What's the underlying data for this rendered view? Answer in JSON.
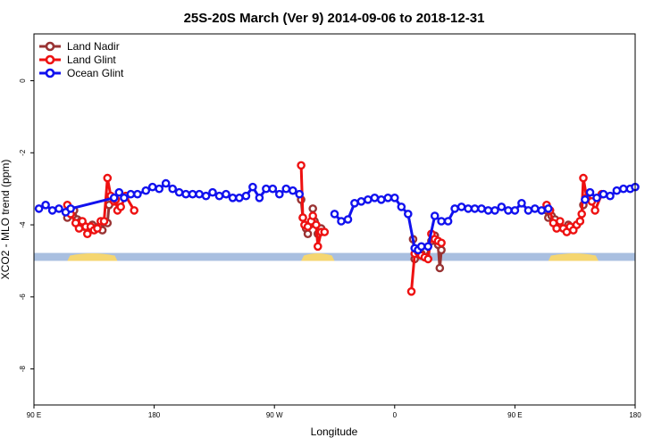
{
  "chart_data": {
    "type": "line",
    "title": "25S-20S March (Ver 9)   2014-09-06 to 2018-12-31",
    "xlabel": "Longitude",
    "ylabel": "XCO2 - MLO trend (ppm)",
    "xlim": [
      0,
      360
    ],
    "ylim": [
      -9,
      1.3
    ],
    "x_ticks": [
      {
        "value": 0,
        "label": "90 E"
      },
      {
        "value": 72,
        "label": "180"
      },
      {
        "value": 144,
        "label": "90 W"
      },
      {
        "value": 216,
        "label": "0"
      },
      {
        "value": 288,
        "label": "90 E"
      },
      {
        "value": 360,
        "label": "180"
      }
    ],
    "y_ticks": [
      {
        "value": 0,
        "label": "0"
      },
      {
        "value": -2,
        "label": "-2"
      },
      {
        "value": -4,
        "label": "-4"
      },
      {
        "value": -6,
        "label": "-6"
      },
      {
        "value": -8,
        "label": "-8"
      }
    ],
    "legend": {
      "position": "top-left",
      "entries": [
        {
          "name": "Land Nadir",
          "color": "#993333"
        },
        {
          "name": "Land Glint",
          "color": "#ee1111"
        },
        {
          "name": "Ocean Glint",
          "color": "#1111ee"
        }
      ]
    },
    "map_band": {
      "y_top": -4.78,
      "y_bottom": -5.0,
      "ocean_color": "#a9bfe0",
      "land_color": "#f5d670",
      "land_segments": [
        [
          20,
          50
        ],
        [
          160,
          180
        ],
        [
          308,
          338
        ]
      ]
    },
    "series": [
      {
        "name": "Land Nadir",
        "color": "#993333",
        "segments": [
          {
            "x": [
              20,
              24,
              26,
              28,
              30,
              33,
              35,
              37,
              39,
              41,
              42,
              44,
              45
            ],
            "y": [
              -3.8,
              -3.6,
              -3.85,
              -3.9,
              -4.05,
              -4.1,
              -4.0,
              -4.1,
              -4.05,
              -4.15,
              -3.9,
              -3.95,
              -3.45
            ]
          },
          {
            "x": [
              160,
              161,
              163,
              164,
              165,
              167,
              168,
              170,
              172
            ],
            "y": [
              -3.3,
              -3.8,
              -4.1,
              -4.25,
              -4.0,
              -3.55,
              -3.9,
              -4.25,
              -4.1
            ]
          },
          {
            "x": [
              227,
              228,
              230,
              232,
              235,
              238,
              240,
              242,
              243,
              244
            ],
            "y": [
              -4.4,
              -4.95,
              -4.75,
              -4.8,
              -4.9,
              -4.45,
              -4.3,
              -4.55,
              -5.2,
              -4.7
            ]
          },
          {
            "x": [
              307,
              308,
              310,
              312,
              314,
              317,
              320,
              322,
              325,
              327,
              329
            ],
            "y": [
              -3.6,
              -3.8,
              -3.75,
              -3.85,
              -4.05,
              -4.1,
              -4.0,
              -4.1,
              -4.0,
              -3.9,
              -3.45
            ]
          }
        ]
      },
      {
        "name": "Land Glint",
        "color": "#ee1111",
        "segments": [
          {
            "x": [
              20,
              22,
              25,
              27,
              29,
              31,
              32,
              34,
              36,
              38,
              40,
              42,
              44,
              46,
              48,
              49,
              50,
              52,
              55,
              60
            ],
            "y": [
              -3.45,
              -3.7,
              -3.95,
              -4.1,
              -3.9,
              -4.05,
              -4.25,
              -4.05,
              -4.15,
              -4.1,
              -3.9,
              -3.9,
              -2.7,
              -3.2,
              -3.35,
              -3.3,
              -3.6,
              -3.5,
              -3.2,
              -3.6
            ]
          },
          {
            "x": [
              160,
              161,
              162,
              164,
              166,
              167,
              169,
              170,
              172,
              174
            ],
            "y": [
              -2.35,
              -3.8,
              -4.0,
              -4.05,
              -3.9,
              -3.75,
              -4.0,
              -4.6,
              -4.2,
              -4.2
            ]
          },
          {
            "x": [
              226,
              228,
              230,
              232,
              234,
              236,
              238,
              240,
              242,
              244
            ],
            "y": [
              -5.85,
              -4.8,
              -4.75,
              -4.85,
              -4.9,
              -4.95,
              -4.25,
              -4.4,
              -4.45,
              -4.5
            ]
          },
          {
            "x": [
              307,
              309,
              311,
              313,
              315,
              317,
              319,
              321,
              323,
              325,
              327,
              328,
              329,
              331,
              334,
              336,
              340
            ],
            "y": [
              -3.45,
              -3.6,
              -3.95,
              -4.1,
              -3.9,
              -4.1,
              -4.2,
              -4.05,
              -4.15,
              -4.0,
              -3.9,
              -3.7,
              -2.7,
              -3.25,
              -3.35,
              -3.6,
              -3.15
            ]
          }
        ]
      },
      {
        "name": "Ocean Glint",
        "color": "#1111ee",
        "segments": [
          {
            "x": [
              3,
              7,
              11,
              15,
              19,
              22,
              48,
              51,
              54,
              58,
              62,
              67,
              71,
              75,
              79,
              83,
              87,
              91,
              95,
              99,
              103,
              107,
              111,
              115,
              119,
              123,
              127,
              131,
              135,
              139,
              143,
              147,
              151,
              155,
              159
            ],
            "y": [
              -3.55,
              -3.45,
              -3.6,
              -3.55,
              -3.65,
              -3.55,
              -3.25,
              -3.1,
              -3.25,
              -3.15,
              -3.15,
              -3.05,
              -2.95,
              -3.0,
              -2.85,
              -3.0,
              -3.1,
              -3.15,
              -3.15,
              -3.15,
              -3.2,
              -3.1,
              -3.2,
              -3.15,
              -3.25,
              -3.25,
              -3.2,
              -2.95,
              -3.25,
              -3.0,
              -3.0,
              -3.15,
              -3.0,
              -3.05,
              -3.15
            ]
          },
          {
            "x": [
              180,
              184,
              188,
              192,
              196,
              200,
              204,
              208,
              212,
              216,
              220,
              224,
              228,
              230,
              232,
              236,
              240,
              244,
              248,
              252,
              256,
              260,
              264,
              268,
              272,
              276,
              280,
              284,
              288,
              292,
              296,
              300,
              304,
              308
            ],
            "y": [
              -3.7,
              -3.9,
              -3.85,
              -3.4,
              -3.35,
              -3.3,
              -3.25,
              -3.3,
              -3.25,
              -3.25,
              -3.5,
              -3.7,
              -4.65,
              -4.7,
              -4.6,
              -4.6,
              -3.75,
              -3.9,
              -3.9,
              -3.55,
              -3.5,
              -3.55,
              -3.55,
              -3.55,
              -3.6,
              -3.6,
              -3.5,
              -3.6,
              -3.6,
              -3.4,
              -3.6,
              -3.55,
              -3.6,
              -3.55
            ]
          },
          {
            "x": [
              330,
              333,
              337,
              341,
              345,
              349,
              353,
              357,
              360
            ],
            "y": [
              -3.3,
              -3.1,
              -3.25,
              -3.15,
              -3.2,
              -3.05,
              -3.0,
              -3.0,
              -2.95
            ]
          }
        ]
      }
    ]
  }
}
